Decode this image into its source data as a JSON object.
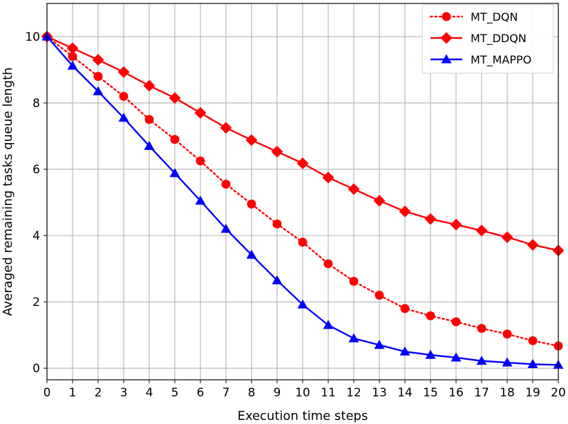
{
  "chart_data": {
    "type": "line",
    "title": "",
    "xlabel": "Execution time steps",
    "ylabel": "Averaged remaining tasks queue length",
    "x": [
      0,
      1,
      2,
      3,
      4,
      5,
      6,
      7,
      8,
      9,
      10,
      11,
      12,
      13,
      14,
      15,
      16,
      17,
      18,
      19,
      20
    ],
    "xlim": [
      0,
      20
    ],
    "ylim": [
      -0.35,
      11
    ],
    "xticks": [
      "0",
      "1",
      "2",
      "3",
      "4",
      "5",
      "6",
      "7",
      "8",
      "9",
      "10",
      "11",
      "12",
      "13",
      "14",
      "15",
      "16",
      "17",
      "18",
      "19",
      "20"
    ],
    "yticks": [
      0,
      2,
      4,
      6,
      8,
      10
    ],
    "grid": true,
    "legend_position": "top-right",
    "series": [
      {
        "name": "MT_DQN",
        "color": "#ff0000",
        "line_style": "dotted",
        "marker": "circle",
        "values": [
          10.0,
          9.4,
          8.8,
          8.2,
          7.5,
          6.9,
          6.25,
          5.55,
          4.95,
          4.35,
          3.8,
          3.15,
          2.62,
          2.2,
          1.8,
          1.58,
          1.4,
          1.2,
          1.03,
          0.83,
          0.67
        ]
      },
      {
        "name": "MT_DDQN",
        "color": "#ff0000",
        "line_style": "solid",
        "marker": "diamond",
        "values": [
          10.0,
          9.65,
          9.3,
          8.93,
          8.52,
          8.15,
          7.7,
          7.25,
          6.88,
          6.53,
          6.18,
          5.75,
          5.4,
          5.05,
          4.73,
          4.5,
          4.33,
          4.15,
          3.95,
          3.72,
          3.55
        ]
      },
      {
        "name": "MT_MAPPO",
        "color": "#0000ff",
        "line_style": "solid",
        "marker": "triangle",
        "values": [
          10.0,
          9.12,
          8.35,
          7.55,
          6.7,
          5.88,
          5.05,
          4.2,
          3.42,
          2.65,
          1.92,
          1.3,
          0.9,
          0.7,
          0.5,
          0.4,
          0.32,
          0.22,
          0.17,
          0.12,
          0.1
        ]
      }
    ]
  }
}
